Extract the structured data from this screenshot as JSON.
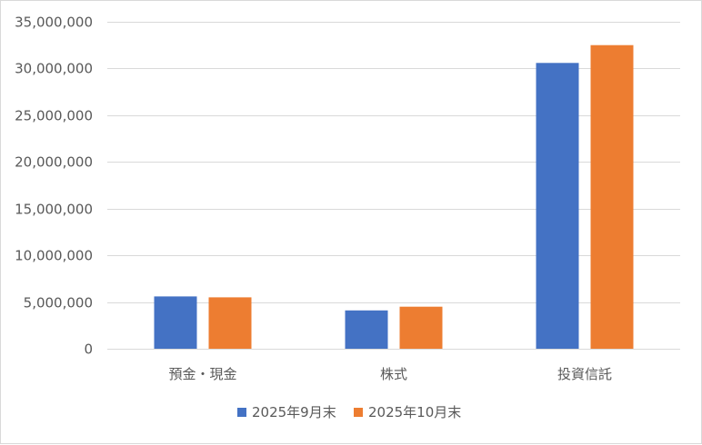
{
  "chart_data": {
    "type": "bar",
    "categories": [
      "預金・現金",
      "株式",
      "投資信託"
    ],
    "series": [
      {
        "name": "2025年9月末",
        "color": "#4472C4",
        "values": [
          5600000,
          4100000,
          30600000
        ]
      },
      {
        "name": "2025年10月末",
        "color": "#ED7D31",
        "values": [
          5500000,
          4500000,
          32500000
        ]
      }
    ],
    "ylim": [
      0,
      35000000
    ],
    "yticks": [
      0,
      5000000,
      10000000,
      15000000,
      20000000,
      25000000,
      30000000,
      35000000
    ],
    "ytick_labels": [
      "0",
      "5,000,000",
      "10,000,000",
      "15,000,000",
      "20,000,000",
      "25,000,000",
      "30,000,000",
      "35,000,000"
    ],
    "grid": true,
    "gridline_color": "#d9d9d9",
    "legend_position": "bottom"
  }
}
